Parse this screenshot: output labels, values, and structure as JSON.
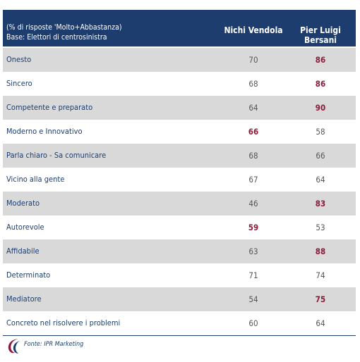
{
  "header": {
    "note_line1": "(% di risposte 'Molto+Abbastanza)",
    "note_line2": "Base: Elettori di centrosinistra",
    "col1": "Nichi Vendola",
    "col2": "Pier Luigi Bersani"
  },
  "chart_data": {
    "type": "table",
    "columns": [
      "Nichi Vendola",
      "Pier Luigi Bersani"
    ],
    "rows": [
      {
        "label": "Onesto",
        "values": [
          70,
          86
        ]
      },
      {
        "label": "Sincero",
        "values": [
          68,
          86
        ]
      },
      {
        "label": "Competente e preparato",
        "values": [
          64,
          90
        ]
      },
      {
        "label": "Moderno e Innovativo",
        "values": [
          66,
          58
        ]
      },
      {
        "label": "Parla chiaro - Sa comunicare",
        "values": [
          68,
          66
        ]
      },
      {
        "label": "Vicino alla gente",
        "values": [
          67,
          64
        ]
      },
      {
        "label": "Moderato",
        "values": [
          46,
          83
        ]
      },
      {
        "label": "Autorevole",
        "values": [
          59,
          53
        ]
      },
      {
        "label": "Affidabile",
        "values": [
          63,
          88
        ]
      },
      {
        "label": "Determinato",
        "values": [
          71,
          74
        ]
      },
      {
        "label": "Mediatore",
        "values": [
          54,
          75
        ]
      },
      {
        "label": "Concreto nel risolvere i problemi",
        "values": [
          60,
          64
        ]
      }
    ],
    "highlight_color": "#8b1a3a",
    "normal_color": "#555555"
  },
  "source": "Fonte: IPR Marketing"
}
